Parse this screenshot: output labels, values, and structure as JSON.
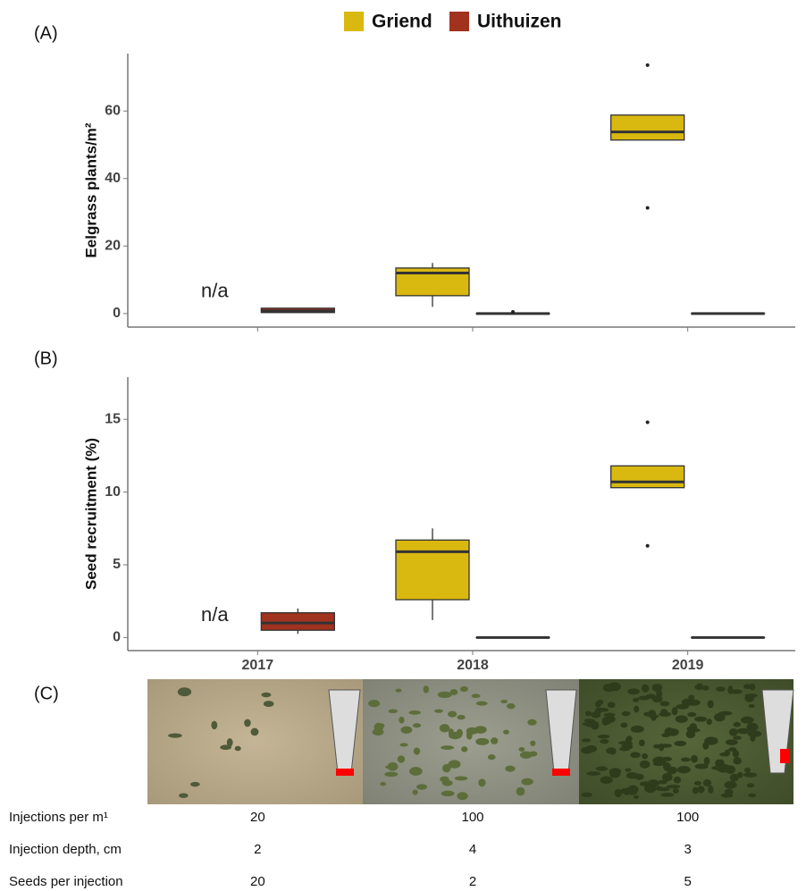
{
  "panel_labels": [
    "(A)",
    "(B)",
    "(C)"
  ],
  "chart_data": [
    {
      "type": "box",
      "y_label": "Eelgrass plants/m²",
      "ylim": [
        -4,
        77
      ],
      "yticks": [
        0,
        20,
        40,
        60
      ],
      "annotations": [
        "n/a"
      ],
      "series": [
        {
          "name": "Griend",
          "color": "#d9b80f",
          "values": [
            null,
            {
              "min": 2,
              "q1": 5.3,
              "median": 12,
              "q3": 13.5,
              "max": 15,
              "outliers": []
            },
            {
              "min": 51.4,
              "q1": 51.4,
              "median": 53.8,
              "q3": 58.8,
              "max": 58.8,
              "outliers": [
                73.6,
                31.3
              ]
            }
          ]
        },
        {
          "name": "Uithuizen",
          "color": "#a0321e",
          "values": [
            {
              "min": 0.3,
              "q1": 0.3,
              "median": 0.8,
              "q3": 1.6,
              "max": 1.6,
              "outliers": []
            },
            {
              "min": 0,
              "q1": 0,
              "median": 0,
              "q3": 0,
              "max": 0,
              "outliers": [
                0.5
              ]
            },
            {
              "min": 0,
              "q1": 0,
              "median": 0,
              "q3": 0,
              "max": 0,
              "outliers": []
            }
          ]
        }
      ]
    },
    {
      "type": "box",
      "y_label": "Seed recruitment (%)",
      "ylim": [
        -0.9,
        17.9
      ],
      "yticks": [
        0,
        5,
        10,
        15
      ],
      "categories": [
        "2017",
        "2018",
        "2019"
      ],
      "annotations": [
        "n/a"
      ],
      "series": [
        {
          "color": "#d9b80f",
          "values": [
            null,
            {
              "min": 1.2,
              "q1": 2.6,
              "median": 5.9,
              "q3": 6.7,
              "max": 7.5,
              "outliers": []
            },
            {
              "min": 10.3,
              "q1": 10.3,
              "median": 10.7,
              "q3": 11.8,
              "max": 11.8,
              "outliers": [
                14.8,
                6.3
              ]
            }
          ]
        },
        {
          "color": "#a0321e",
          "values": [
            {
              "min": 0.25,
              "q1": 0.5,
              "median": 1.0,
              "q3": 1.7,
              "max": 2.0,
              "outliers": []
            },
            {
              "min": 0,
              "q1": 0,
              "median": 0,
              "q3": 0,
              "max": 0,
              "outliers": []
            },
            {
              "min": 0,
              "q1": 0,
              "median": 0,
              "q3": 0,
              "max": 0,
              "outliers": []
            }
          ]
        }
      ]
    }
  ],
  "table": {
    "rows": [
      [
        "Injections per m¹",
        20,
        100,
        100
      ],
      [
        "Injection depth, cm",
        2,
        4,
        3
      ],
      [
        "Seeds per injection",
        20,
        2,
        5
      ]
    ]
  }
}
